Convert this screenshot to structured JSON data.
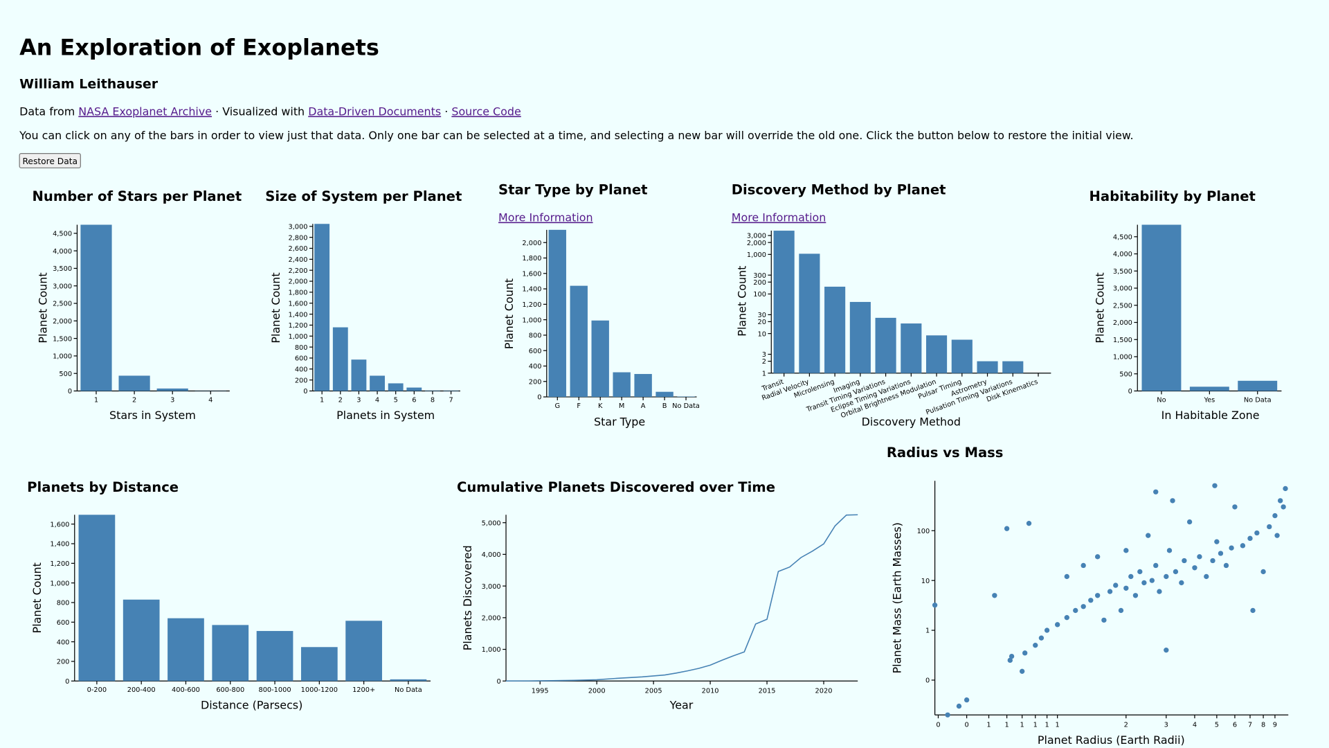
{
  "header": {
    "title": "An Exploration of Exoplanets",
    "author": "William Leithauser",
    "credits": [
      "Data from ",
      "NASA Exoplanet Archive",
      " · Visualized with ",
      "Data-Driven Documents",
      " · ",
      "Source Code"
    ],
    "instructions": "You can click on any of the bars in order to view just that data. Only one bar can be selected at a time, and selecting a new bar will override the old one. Click the button below to restore the initial view.",
    "button": "Restore Data"
  },
  "chart_data": [
    {
      "type": "bar",
      "title": "Number of Stars per Planet",
      "x_label": "Stars in System",
      "y_label": "Planet Count",
      "color": "#4682b4",
      "categories": [
        "1",
        "2",
        "3",
        "4"
      ],
      "values": [
        4745,
        436,
        70,
        5
      ],
      "ylim": [
        0,
        4745
      ],
      "yticks": [
        0,
        500,
        {
          "value": 1000,
          "label": "1,000"
        },
        {
          "value": 1500,
          "label": "1,500"
        },
        {
          "value": 2000,
          "label": "2,000"
        },
        {
          "value": 2500,
          "label": "2,500"
        },
        {
          "value": 3000,
          "label": "3,000"
        },
        {
          "value": 3500,
          "label": "3,500"
        },
        {
          "value": 4000,
          "label": "4,000"
        },
        {
          "value": 4500,
          "label": "4,500"
        }
      ]
    },
    {
      "type": "bar",
      "title": "Size of System per Planet",
      "x_label": "Planets in System",
      "y_label": "Planet Count",
      "color": "#4682b4",
      "categories": [
        "1",
        "2",
        "3",
        "4",
        "5",
        "6",
        "8",
        "7"
      ],
      "values": [
        3045,
        1160,
        572,
        278,
        139,
        62,
        8,
        7
      ],
      "ylim": [
        0,
        3045
      ],
      "yticks": [
        0,
        200,
        400,
        600,
        800,
        {
          "value": 1000,
          "label": "1,000"
        },
        {
          "value": 1200,
          "label": "1,200"
        },
        {
          "value": 1400,
          "label": "1,400"
        },
        {
          "value": 1600,
          "label": "1,600"
        },
        {
          "value": 1800,
          "label": "1,800"
        },
        {
          "value": 2000,
          "label": "2,000"
        },
        {
          "value": 2200,
          "label": "2,200"
        },
        {
          "value": 2400,
          "label": "2,400"
        },
        {
          "value": 2600,
          "label": "2,600"
        },
        {
          "value": 2800,
          "label": "2,800"
        },
        {
          "value": 3000,
          "label": "3,000"
        }
      ]
    },
    {
      "type": "bar",
      "title": "Star Type by Planet",
      "link": "More Information",
      "x_label": "Star Type",
      "y_label": "Planet Count",
      "color": "#4682b4",
      "categories": [
        "G",
        "F",
        "K",
        "M",
        "A",
        "B",
        "No Data"
      ],
      "values": [
        2165,
        1440,
        990,
        319,
        297,
        66,
        5
      ],
      "ylim": [
        0,
        2165
      ],
      "yticks": [
        0,
        200,
        400,
        600,
        800,
        {
          "value": 1000,
          "label": "1,000"
        },
        {
          "value": 1200,
          "label": "1,200"
        },
        {
          "value": 1400,
          "label": "1,400"
        },
        {
          "value": 1600,
          "label": "1,600"
        },
        {
          "value": 1800,
          "label": "1,800"
        },
        {
          "value": 2000,
          "label": "2,000"
        }
      ]
    },
    {
      "type": "bar",
      "title": "Discovery Method by Planet",
      "link": "More Information",
      "x_label": "Discovery Method",
      "y_label": "Planet Count",
      "color": "#4682b4",
      "ylog": true,
      "categories": [
        "Transit",
        "Radial Velocity",
        "Microlensing",
        "Imaging",
        "Transit Timing Variations",
        "Eclipse Timing Variations",
        "Orbital Brightness Modulation",
        "Pulsar Timing",
        "Astrometry",
        "Pulsation Timing Variations",
        "Disk Kinematics"
      ],
      "values": [
        3980,
        1040,
        153,
        63,
        25,
        18,
        9,
        7,
        2,
        2,
        1
      ],
      "ylim": [
        1,
        3980
      ],
      "yticks": [
        1,
        2,
        3,
        10,
        20,
        30,
        100,
        200,
        300,
        {
          "value": 1000,
          "label": "1,000"
        },
        {
          "value": 2000,
          "label": "2,000"
        },
        {
          "value": 3000,
          "label": "3,000"
        }
      ]
    },
    {
      "type": "bar",
      "title": "Habitability by Planet",
      "x_label": "In Habitable Zone",
      "y_label": "Planet Count",
      "color": "#4682b4",
      "categories": [
        "No",
        "Yes",
        "No Data"
      ],
      "values": [
        4850,
        124,
        297
      ],
      "ylim": [
        0,
        4850
      ],
      "yticks": [
        0,
        500,
        {
          "value": 1000,
          "label": "1,000"
        },
        {
          "value": 1500,
          "label": "1,500"
        },
        {
          "value": 2000,
          "label": "2,000"
        },
        {
          "value": 2500,
          "label": "2,500"
        },
        {
          "value": 3000,
          "label": "3,000"
        },
        {
          "value": 3500,
          "label": "3,500"
        },
        {
          "value": 4000,
          "label": "4,000"
        },
        {
          "value": 4500,
          "label": "4,500"
        }
      ]
    },
    {
      "type": "bar",
      "title": "Planets by Distance",
      "x_label": "Distance (Parsecs)",
      "y_label": "Planet Count",
      "color": "#4682b4",
      "categories": [
        "0-200",
        "200-400",
        "400-600",
        "600-800",
        "800-1000",
        "1000-1200",
        "1200+",
        "No Data"
      ],
      "values": [
        1695,
        830,
        640,
        571,
        510,
        346,
        614,
        17
      ],
      "ylim": [
        0,
        1695
      ],
      "yticks": [
        0,
        200,
        400,
        600,
        800,
        {
          "value": 1000,
          "label": "1,000"
        },
        {
          "value": 1200,
          "label": "1,200"
        },
        {
          "value": 1400,
          "label": "1,400"
        },
        {
          "value": 1600,
          "label": "1,600"
        }
      ]
    },
    {
      "type": "line",
      "title": "Cumulative Planets Discovered over Time",
      "x_label": "Year",
      "y_label": "Planets Discovered",
      "color": "#4682b4",
      "x": [
        1992,
        1994,
        1996,
        1998,
        2000,
        2002,
        2004,
        2006,
        2007,
        2008,
        2009,
        2010,
        2011,
        2012,
        2013,
        2014,
        2015,
        2016,
        2017,
        2018,
        2019,
        2020,
        2021,
        2022,
        2023
      ],
      "values": [
        2,
        3,
        10,
        20,
        40,
        90,
        130,
        190,
        250,
        320,
        400,
        500,
        650,
        790,
        920,
        1800,
        1950,
        3460,
        3600,
        3900,
        4100,
        4330,
        4900,
        5240,
        5250
      ],
      "xlim": [
        1992,
        2023
      ],
      "ylim": [
        0,
        5250
      ],
      "xticks": [
        1995,
        2000,
        2005,
        2010,
        2015,
        2020
      ],
      "yticks": [
        0,
        {
          "value": 1000,
          "label": "1,000"
        },
        {
          "value": 2000,
          "label": "2,000"
        },
        {
          "value": 3000,
          "label": "3,000"
        },
        {
          "value": 4000,
          "label": "4,000"
        },
        {
          "value": 5000,
          "label": "5,000"
        }
      ]
    },
    {
      "type": "scatter",
      "title": "Radius vs Mass",
      "x_label": "Planet Radius (Earth Radii)",
      "y_label": "Planet Mass (Earth Masses)",
      "color": "#4682b4",
      "xlog": true,
      "ylog": true,
      "x": [
        0.29,
        0.33,
        0.37,
        0.4,
        0.53,
        0.6,
        0.62,
        0.63,
        0.7,
        0.72,
        0.75,
        0.8,
        0.85,
        0.9,
        1.0,
        1.1,
        1.1,
        1.2,
        1.3,
        1.3,
        1.4,
        1.5,
        1.5,
        1.6,
        1.7,
        1.8,
        1.9,
        2.0,
        2.0,
        2.1,
        2.2,
        2.3,
        2.4,
        2.5,
        2.6,
        2.7,
        2.8,
        3.0,
        3.0,
        3.1,
        3.3,
        3.5,
        3.6,
        3.8,
        4.0,
        4.2,
        4.5,
        4.8,
        5.0,
        5.2,
        5.5,
        5.8,
        6.0,
        6.5,
        7.0,
        7.2,
        7.5,
        8.0,
        8.5,
        9.0,
        9.5,
        10,
        9.8,
        9.2,
        3.2,
        2.7,
        4.9
      ],
      "values": [
        3.2,
        0.02,
        0.03,
        0.04,
        5,
        110,
        0.25,
        0.3,
        0.15,
        0.35,
        140,
        0.5,
        0.7,
        1.0,
        1.3,
        1.8,
        12,
        2.5,
        3,
        20,
        4,
        5,
        30,
        1.6,
        6,
        8,
        2.5,
        7,
        40,
        12,
        5,
        15,
        9,
        80,
        10,
        20,
        6,
        12,
        0.4,
        40,
        15,
        9,
        25,
        150,
        18,
        30,
        12,
        25,
        60,
        35,
        20,
        45,
        300,
        50,
        70,
        2.5,
        90,
        15,
        120,
        200,
        400,
        700,
        300,
        80,
        400,
        600,
        800
      ],
      "xlim": [
        0.29,
        10.3
      ],
      "ylim": [
        0.02,
        1000
      ],
      "xticks": [
        {
          "value": 0.3,
          "label": "0"
        },
        {
          "value": 0.4,
          "label": "0"
        },
        {
          "value": 0.5,
          "label": "1"
        },
        {
          "value": 0.6,
          "label": "1"
        },
        {
          "value": 0.7,
          "label": "1"
        },
        {
          "value": 0.8,
          "label": "1"
        },
        {
          "value": 0.9,
          "label": "1"
        },
        1,
        2,
        3,
        4,
        5,
        6,
        7,
        8,
        9
      ],
      "yticks": [
        {
          "value": 0.1,
          "label": "0"
        },
        1,
        10,
        100
      ]
    }
  ]
}
